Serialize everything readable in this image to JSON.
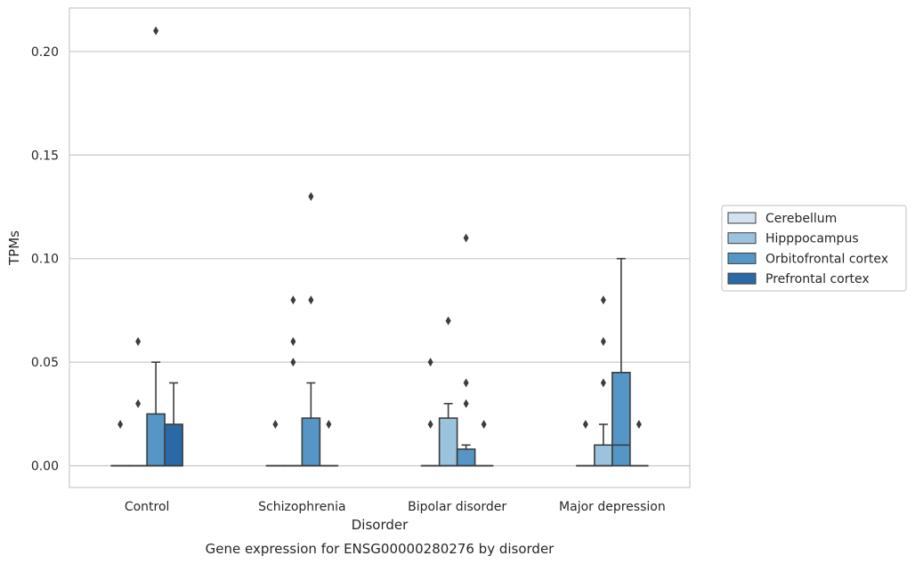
{
  "chart_data": {
    "type": "box",
    "xlabel": "Disorder",
    "ylabel": "TPMs",
    "caption": "Gene expression for ENSG00000280276 by disorder",
    "ylim": [
      -0.0105,
      0.221
    ],
    "yticks": [
      0.0,
      0.05,
      0.1,
      0.15,
      0.2
    ],
    "ytick_labels": [
      "0.00",
      "0.05",
      "0.10",
      "0.15",
      "0.20"
    ],
    "grid": "horizontal",
    "legend_position": "right",
    "categories": [
      "Control",
      "Schizophrenia",
      "Bipolar disorder",
      "Major depression"
    ],
    "series": [
      {
        "name": "Cerebellum",
        "color": "#d1e2f0",
        "boxes": [
          {
            "q1": 0,
            "median": 0,
            "q3": 0,
            "whisker_low": 0,
            "whisker_high": 0,
            "outliers": [
              0.02
            ]
          },
          {
            "q1": 0,
            "median": 0,
            "q3": 0,
            "whisker_low": 0,
            "whisker_high": 0,
            "outliers": [
              0.02
            ]
          },
          {
            "q1": 0,
            "median": 0,
            "q3": 0,
            "whisker_low": 0,
            "whisker_high": 0,
            "outliers": [
              0.02,
              0.05
            ]
          },
          {
            "q1": 0,
            "median": 0,
            "q3": 0,
            "whisker_low": 0,
            "whisker_high": 0,
            "outliers": [
              0.02
            ]
          }
        ]
      },
      {
        "name": "Hipppocampus",
        "color": "#9ac4de",
        "boxes": [
          {
            "q1": 0,
            "median": 0,
            "q3": 0,
            "whisker_low": 0,
            "whisker_high": 0,
            "outliers": [
              0.03,
              0.06
            ]
          },
          {
            "q1": 0,
            "median": 0,
            "q3": 0,
            "whisker_low": 0,
            "whisker_high": 0,
            "outliers": [
              0.05,
              0.06,
              0.08
            ]
          },
          {
            "q1": 0,
            "median": 0,
            "q3": 0.023,
            "whisker_low": 0,
            "whisker_high": 0.03,
            "outliers": [
              0.07
            ]
          },
          {
            "q1": 0,
            "median": 0,
            "q3": 0.01,
            "whisker_low": 0,
            "whisker_high": 0.02,
            "outliers": [
              0.04,
              0.06,
              0.08
            ]
          }
        ]
      },
      {
        "name": "Orbitofrontal cortex",
        "color": "#5596c6",
        "boxes": [
          {
            "q1": 0,
            "median": 0,
            "q3": 0.025,
            "whisker_low": 0,
            "whisker_high": 0.05,
            "outliers": [
              0.21
            ]
          },
          {
            "q1": 0,
            "median": 0,
            "q3": 0.023,
            "whisker_low": 0,
            "whisker_high": 0.04,
            "outliers": [
              0.08,
              0.13
            ]
          },
          {
            "q1": 0,
            "median": 0,
            "q3": 0.008,
            "whisker_low": 0,
            "whisker_high": 0.01,
            "outliers": [
              0.03,
              0.04,
              0.11
            ]
          },
          {
            "q1": 0,
            "median": 0.01,
            "q3": 0.045,
            "whisker_low": 0,
            "whisker_high": 0.1,
            "outliers": []
          }
        ]
      },
      {
        "name": "Prefrontal cortex",
        "color": "#2b69a6",
        "boxes": [
          {
            "q1": 0,
            "median": 0,
            "q3": 0.02,
            "whisker_low": 0,
            "whisker_high": 0.04,
            "outliers": []
          },
          {
            "q1": 0,
            "median": 0,
            "q3": 0,
            "whisker_low": 0,
            "whisker_high": 0,
            "outliers": [
              0.02
            ]
          },
          {
            "q1": 0,
            "median": 0,
            "q3": 0,
            "whisker_low": 0,
            "whisker_high": 0,
            "outliers": [
              0.02
            ]
          },
          {
            "q1": 0,
            "median": 0,
            "q3": 0,
            "whisker_low": 0,
            "whisker_high": 0,
            "outliers": [
              0.02
            ]
          }
        ]
      }
    ]
  }
}
